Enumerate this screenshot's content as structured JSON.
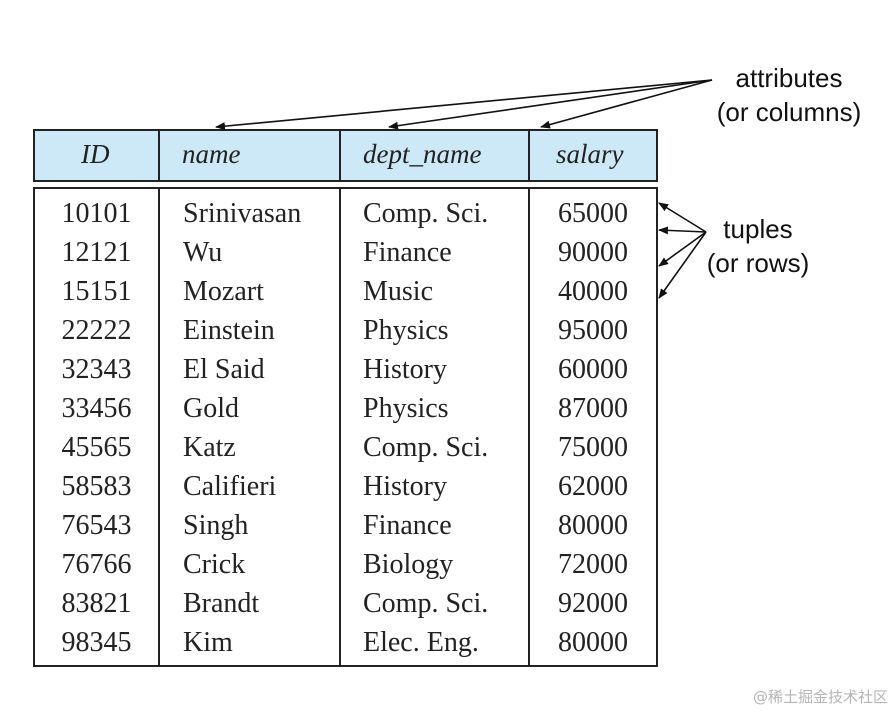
{
  "columns": [
    {
      "label": "ID"
    },
    {
      "label": "name"
    },
    {
      "label": "dept_name"
    },
    {
      "label": "salary"
    }
  ],
  "rows": [
    [
      "10101",
      "Srinivasan",
      "Comp. Sci.",
      "65000"
    ],
    [
      "12121",
      "Wu",
      "Finance",
      "90000"
    ],
    [
      "15151",
      "Mozart",
      "Music",
      "40000"
    ],
    [
      "22222",
      "Einstein",
      "Physics",
      "95000"
    ],
    [
      "32343",
      "El Said",
      "History",
      "60000"
    ],
    [
      "33456",
      "Gold",
      "Physics",
      "87000"
    ],
    [
      "45565",
      "Katz",
      "Comp. Sci.",
      "75000"
    ],
    [
      "58583",
      "Califieri",
      "History",
      "62000"
    ],
    [
      "76543",
      "Singh",
      "Finance",
      "80000"
    ],
    [
      "76766",
      "Crick",
      "Biology",
      "72000"
    ],
    [
      "83821",
      "Brandt",
      "Comp. Sci.",
      "92000"
    ],
    [
      "98345",
      "Kim",
      "Elec. Eng.",
      "80000"
    ]
  ],
  "annotations": {
    "attributes": {
      "line1": "attributes",
      "line2": "(or columns)"
    },
    "tuples": {
      "line1": "tuples",
      "line2": "(or rows)"
    }
  },
  "watermark": "@稀土掘金技术社区",
  "colors": {
    "header_fill": "#cde8f6",
    "border": "#222222"
  }
}
